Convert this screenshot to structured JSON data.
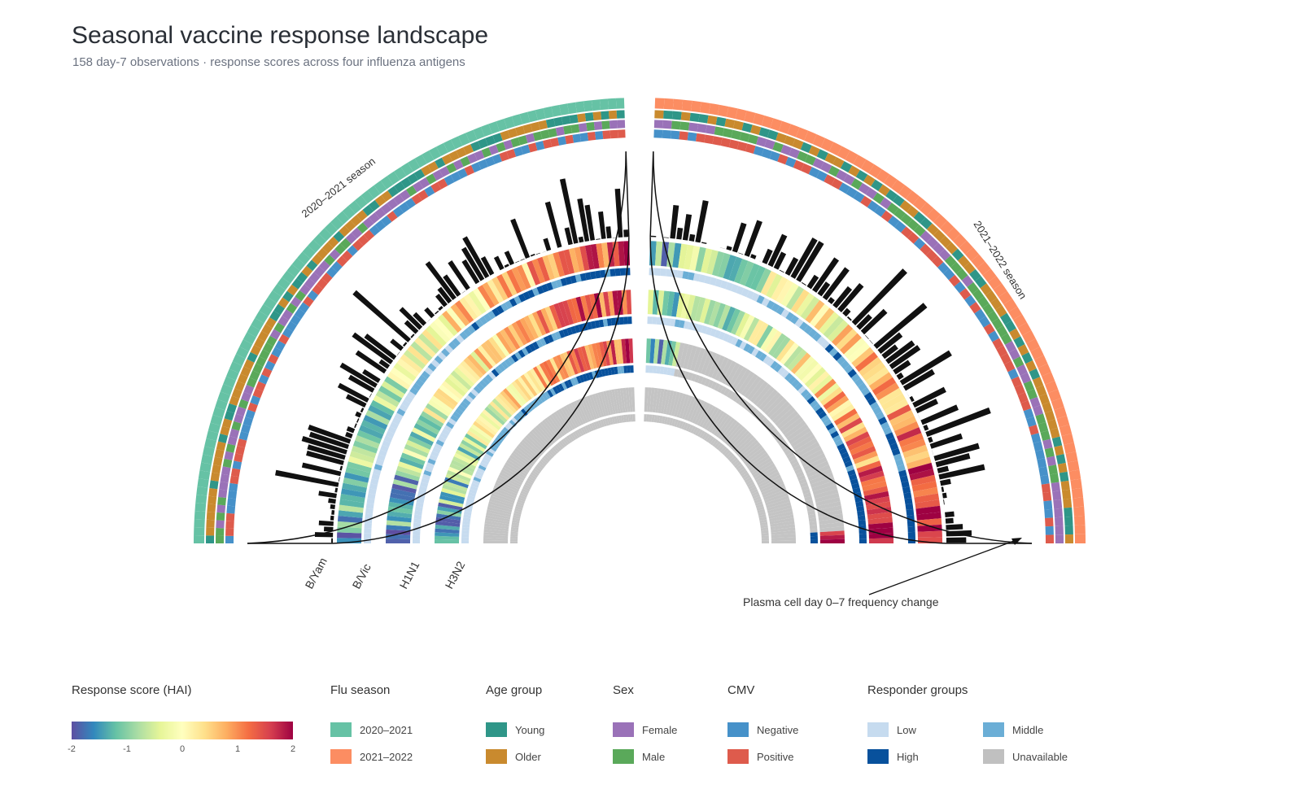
{
  "header": {
    "title": "Seasonal vaccine response landscape",
    "subtitle": "158 day-7 observations · response scores across four influenza antigens"
  },
  "chart_data": {
    "type": "heatmap",
    "layout": "circular",
    "n_observations": 158,
    "sectors": [
      {
        "name": "2020–2021 season",
        "n": 84,
        "color": "#66c2a5"
      },
      {
        "name": "2021–2022 season",
        "n": 74,
        "color": "#fc8d62"
      }
    ],
    "antigens": [
      "B/Yam",
      "B/Vic",
      "H1N1",
      "H3N2"
    ],
    "annotation": "Plasma cell day 0–7 frequency change",
    "colorbar": {
      "title": "Response score (HAI)",
      "min": -2,
      "max": 2,
      "ticks": [
        "-2",
        "-1",
        "0",
        "1",
        "2"
      ],
      "colors": [
        "#5e4fa2",
        "#3288bd",
        "#66c2a5",
        "#abdda4",
        "#e6f598",
        "#ffffbf",
        "#fee08b",
        "#fdae61",
        "#f46d43",
        "#d53e4f",
        "#9e0142"
      ]
    },
    "legends": [
      {
        "title": "Flu season",
        "items": [
          {
            "label": "2020–2021",
            "color": "#66c2a5"
          },
          {
            "label": "2021–2022",
            "color": "#fc8d62"
          }
        ]
      },
      {
        "title": "Age group",
        "items": [
          {
            "label": "Young",
            "color": "#2f9688"
          },
          {
            "label": "Older",
            "color": "#c98a2e"
          }
        ]
      },
      {
        "title": "Sex",
        "items": [
          {
            "label": "Female",
            "color": "#9a72b8"
          },
          {
            "label": "Male",
            "color": "#5aa95a"
          }
        ]
      },
      {
        "title": "CMV",
        "items": [
          {
            "label": "Negative",
            "color": "#4691c9"
          },
          {
            "label": "Positive",
            "color": "#de5b4c"
          }
        ]
      },
      {
        "title": "Responder groups",
        "items": [
          {
            "label": "Low",
            "color": "#c6dbef"
          },
          {
            "label": "Middle",
            "color": "#6baed6"
          },
          {
            "label": "High",
            "color": "#08519c"
          },
          {
            "label": "Unavailable",
            "color": "#c0c0c0"
          }
        ]
      }
    ]
  }
}
